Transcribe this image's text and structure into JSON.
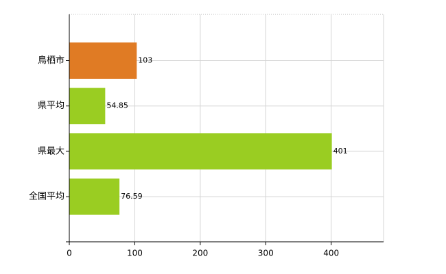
{
  "chart_data": {
    "type": "bar",
    "orientation": "horizontal",
    "categories": [
      "鳥栖市",
      "県平均",
      "県最大",
      "全国平均"
    ],
    "values": [
      103,
      54.85,
      401,
      76.59
    ],
    "colors": [
      "#e07b24",
      "#9acd22",
      "#9acd22",
      "#9acd22"
    ],
    "xlim": [
      0,
      480
    ],
    "xticks": [
      0,
      100,
      200,
      300,
      400
    ],
    "grid": true
  }
}
